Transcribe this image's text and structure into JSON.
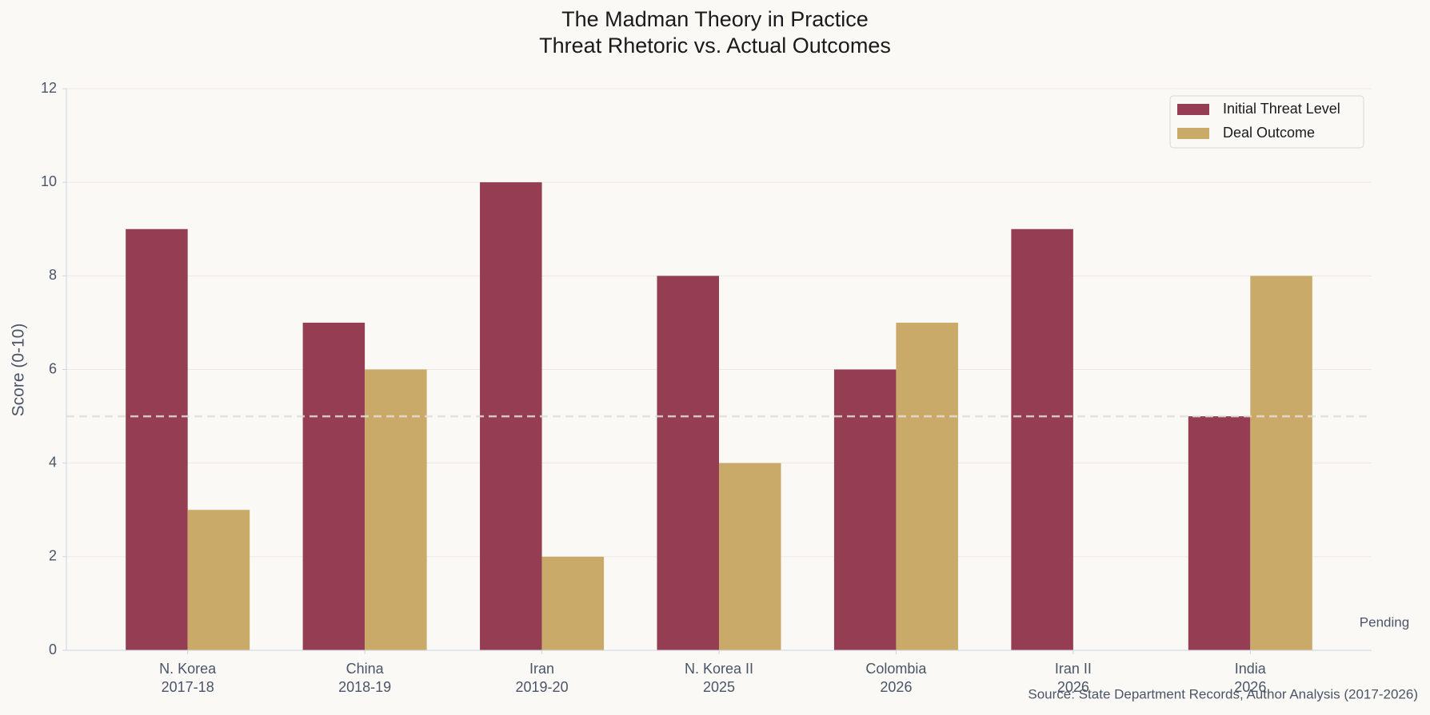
{
  "chart_data": {
    "type": "bar",
    "title": "The Madman Theory in Practice",
    "subtitle": "Threat Rhetoric vs. Actual Outcomes",
    "y_label": "Score (0-10)",
    "categories": [
      "N. Korea\n2017-18",
      "China\n2018-19",
      "Iran\n2019-20",
      "N. Korea II\n2025",
      "Colombia\n2026",
      "Iran II\n2026",
      "India\n2026"
    ],
    "series": [
      {
        "name": "Initial Threat Level",
        "color": "#943d53",
        "values": [
          9,
          7,
          10,
          8,
          6,
          9,
          5
        ]
      },
      {
        "name": "Deal Outcome",
        "color": "#c9aa68",
        "values": [
          3,
          6,
          2,
          4,
          7,
          null,
          8
        ]
      }
    ],
    "ylim": [
      0,
      12
    ],
    "yticks": [
      0,
      2,
      4,
      6,
      8,
      10,
      12
    ],
    "grid": true,
    "legend": "upper right",
    "reference_line": 5,
    "annotation": "Pending",
    "source": "Source: State Department Records, Author Analysis (2017-2026)"
  }
}
